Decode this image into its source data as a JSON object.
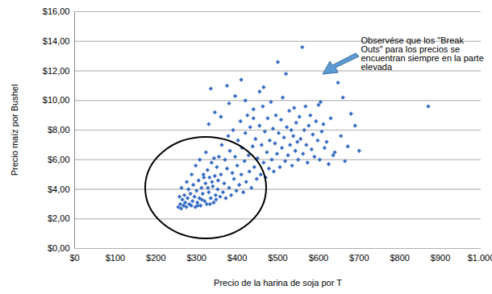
{
  "chart_data": {
    "type": "scatter",
    "x_label": "Precio de la harina de soja por T",
    "y_label": "Precio maíz por Bushel",
    "annotation": "Observése que los \"Break Outs\" para los precios se encuentran siempre en la parte elevada",
    "color": "#3a6ec4",
    "marker": "diamond",
    "grid": true,
    "xlim": [
      0,
      1000
    ],
    "ylim": [
      0,
      16
    ],
    "xticks": [
      {
        "value": 0,
        "label": "$0"
      },
      {
        "value": 100,
        "label": "$100"
      },
      {
        "value": 200,
        "label": "$200"
      },
      {
        "value": 300,
        "label": "$300"
      },
      {
        "value": 400,
        "label": "$400"
      },
      {
        "value": 500,
        "label": "$500"
      },
      {
        "value": 600,
        "label": "$600"
      },
      {
        "value": 700,
        "label": "$700"
      },
      {
        "value": 800,
        "label": "$800"
      },
      {
        "value": 900,
        "label": "$900"
      },
      {
        "value": 1000,
        "label": "$1.000"
      }
    ],
    "yticks": [
      {
        "value": 0,
        "label": "$0,00"
      },
      {
        "value": 2,
        "label": "$2,00"
      },
      {
        "value": 4,
        "label": "$4,00"
      },
      {
        "value": 6,
        "label": "$6,00"
      },
      {
        "value": 8,
        "label": "$8,00"
      },
      {
        "value": 10,
        "label": "$10,00"
      },
      {
        "value": 12,
        "label": "$12,00"
      },
      {
        "value": 14,
        "label": "$14,00"
      },
      {
        "value": 16,
        "label": "$16,00"
      }
    ],
    "x": [
      255,
      260,
      262,
      265,
      268,
      270,
      272,
      275,
      278,
      280,
      282,
      285,
      287,
      290,
      292,
      295,
      297,
      300,
      302,
      305,
      307,
      310,
      312,
      315,
      317,
      320,
      322,
      325,
      327,
      330,
      332,
      335,
      337,
      340,
      342,
      345,
      347,
      350,
      352,
      355,
      258,
      263,
      276,
      288,
      298,
      303,
      308,
      313,
      318,
      323,
      328,
      333,
      338,
      343,
      348,
      353,
      358,
      360,
      362,
      365,
      368,
      370,
      372,
      375,
      378,
      380,
      382,
      385,
      388,
      390,
      392,
      395,
      398,
      400,
      402,
      405,
      408,
      410,
      412,
      415,
      418,
      420,
      422,
      425,
      428,
      430,
      432,
      435,
      438,
      440,
      442,
      445,
      448,
      450,
      330,
      345,
      360,
      335,
      375,
      380,
      395,
      410,
      420,
      440,
      455,
      465,
      455,
      458,
      460,
      463,
      465,
      468,
      470,
      473,
      475,
      478,
      480,
      483,
      485,
      488,
      490,
      493,
      495,
      498,
      500,
      502,
      505,
      508,
      510,
      512,
      515,
      518,
      520,
      522,
      525,
      528,
      530,
      533,
      535,
      538,
      540,
      543,
      545,
      548,
      550,
      553,
      556,
      560,
      562,
      565,
      568,
      570,
      573,
      576,
      580,
      583,
      586,
      590,
      594,
      598,
      600,
      603,
      605,
      608,
      612,
      615,
      620,
      625,
      630,
      636,
      640,
      642,
      648,
      655,
      660,
      665,
      672,
      680,
      690,
      700,
      870
    ],
    "values": [
      2.8,
      3.0,
      2.7,
      3.3,
      2.9,
      3.6,
      3.1,
      2.8,
      3.4,
      4.0,
      3.0,
      3.7,
      2.9,
      3.2,
      4.3,
      3.5,
      2.8,
      3.9,
      3.1,
      4.6,
      3.4,
      2.9,
      4.1,
      3.7,
      5.0,
      3.2,
      4.4,
      3.0,
      5.3,
      3.8,
      4.8,
      3.4,
      5.8,
      4.2,
      3.1,
      4.9,
      3.6,
      5.5,
      4.0,
      6.2,
      3.5,
      4.1,
      4.5,
      5.0,
      5.6,
      2.9,
      6.0,
      3.3,
      4.8,
      6.5,
      4.1,
      3.0,
      4.5,
      6.1,
      3.3,
      4.6,
      3.5,
      5.0,
      7.0,
      3.8,
      4.4,
      6.0,
      3.4,
      5.4,
      7.6,
      4.1,
      6.6,
      3.6,
      5.1,
      8.0,
      4.7,
      6.2,
      3.9,
      5.6,
      7.3,
      4.3,
      8.6,
      5.0,
      6.8,
      3.8,
      5.9,
      7.8,
      4.5,
      9.0,
      6.3,
      5.2,
      8.2,
      4.1,
      6.9,
      9.4,
      5.5,
      7.4,
      4.7,
      6.1,
      8.4,
      9.2,
      8.9,
      10.8,
      11.0,
      9.8,
      10.3,
      11.4,
      10.0,
      8.8,
      10.6,
      10.9,
      8.3,
      5.0,
      7.0,
      9.6,
      5.8,
      7.9,
      4.8,
      6.5,
      8.8,
      5.4,
      7.3,
      9.9,
      6.0,
      8.1,
      5.2,
      7.1,
      9.0,
      6.4,
      12.6,
      7.8,
      5.5,
      8.7,
      6.8,
      10.2,
      7.5,
      5.9,
      11.8,
      8.2,
      6.3,
      9.3,
      7.0,
      8.0,
      5.6,
      7.6,
      9.5,
      6.6,
      8.5,
      7.2,
      6.0,
      8.9,
      7.4,
      13.6,
      6.4,
      8.0,
      9.6,
      7.0,
      5.8,
      8.3,
      9.0,
      6.7,
      7.7,
      6.2,
      8.6,
      7.3,
      9.7,
      6.0,
      9.9,
      7.9,
      8.4,
      6.8,
      7.2,
      5.7,
      8.8,
      6.3,
      6.5,
      12.0,
      11.2,
      7.6,
      10.2,
      5.9,
      6.9,
      9.1,
      8.3,
      6.6,
      9.6
    ]
  }
}
